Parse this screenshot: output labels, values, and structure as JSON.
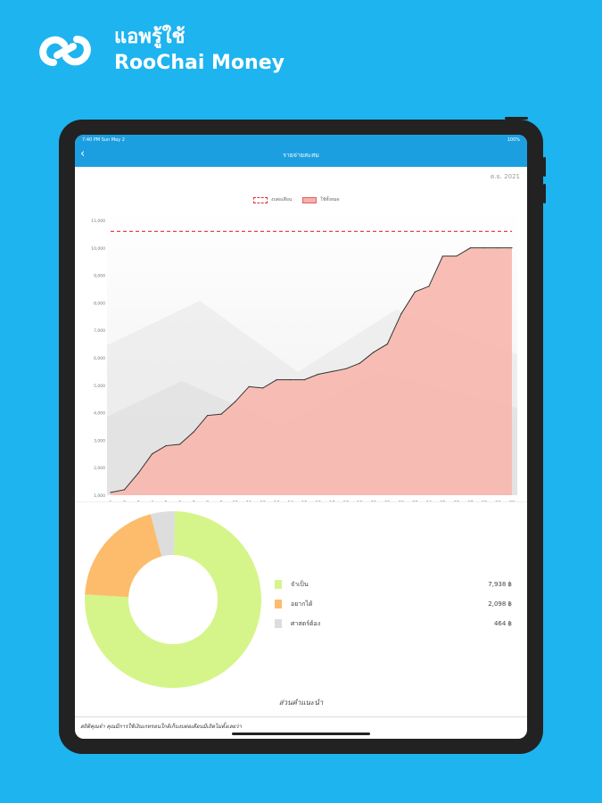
{
  "brand": {
    "line1": "แอพรู้ใช้",
    "line2": "RooChai Money"
  },
  "status": {
    "time": "7:40 PM   Sun May 2",
    "battery": "100%"
  },
  "nav": {
    "back_icon": "chevron-left-icon",
    "title": "รายจ่ายสะสม"
  },
  "month_label": "ต.ย. 2021",
  "chart_data": {
    "type": "area",
    "legend": [
      "งบต่อเดือน",
      "ใช้ทั้งหมด"
    ],
    "budget_line": 10600,
    "x": [
      1,
      2,
      3,
      4,
      5,
      6,
      7,
      8,
      9,
      10,
      11,
      12,
      13,
      14,
      15,
      16,
      17,
      18,
      19,
      20,
      21,
      22,
      23,
      24,
      25,
      26,
      27,
      28,
      29,
      30
    ],
    "values": [
      1100,
      1200,
      1800,
      2500,
      2800,
      2850,
      3300,
      3900,
      3950,
      4400,
      4950,
      4900,
      5200,
      5200,
      5200,
      5400,
      5500,
      5600,
      5800,
      6200,
      6500,
      7600,
      8400,
      8600,
      9700,
      9700,
      10000,
      10000,
      10000,
      10000
    ],
    "y_ticks": [
      "1,000",
      "2,000",
      "3,000",
      "4,000",
      "5,000",
      "6,000",
      "7,000",
      "8,000",
      "9,000",
      "10,000",
      "11,000"
    ],
    "ylim": [
      1000,
      11000
    ],
    "colors": {
      "area": "#f7b8b0",
      "line": "#333333",
      "budget": "#e03030"
    }
  },
  "donut": {
    "items": [
      {
        "label": "จำเป็น",
        "value": 7938,
        "display": "7,938 ฿",
        "color": "#d5f58a"
      },
      {
        "label": "อยากได้",
        "value": 2098,
        "display": "2,098 ฿",
        "color": "#fcbc6c"
      },
      {
        "label": "ศาสตร์ต้อง",
        "value": 464,
        "display": "464 ฿",
        "color": "#dddddd"
      }
    ]
  },
  "hint_title": "ส่วนคำแนะนำ",
  "message": "สถิติคุณจ๋า คุณมีการใช้เงินเกทรอนใกล้เก็บงบต่อเดือนมีเถิดไม่ตั้งเลยว่า"
}
